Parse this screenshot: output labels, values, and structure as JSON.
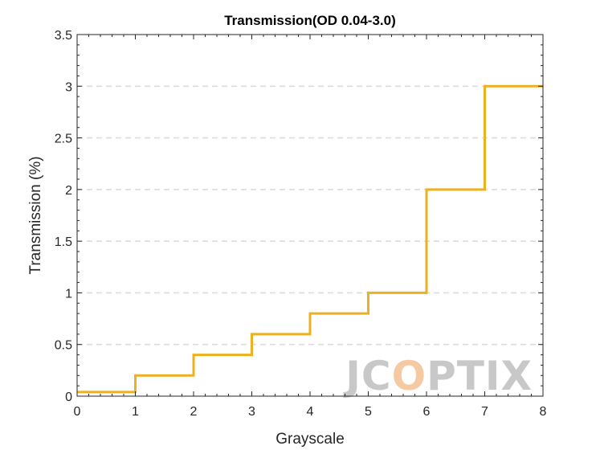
{
  "chart_data": {
    "type": "line",
    "step": "post",
    "title": "Transmission(OD 0.04-3.0)",
    "xlabel": "Grayscale",
    "ylabel": "Transmission (%)",
    "xlim": [
      0,
      8
    ],
    "ylim": [
      0,
      3.5
    ],
    "x_ticks": [
      0,
      1,
      2,
      3,
      4,
      5,
      6,
      7,
      8
    ],
    "y_ticks": [
      0,
      0.5,
      1,
      1.5,
      2,
      2.5,
      3,
      3.5
    ],
    "y_tick_labels": [
      "0",
      "0.5",
      "1",
      "1.5",
      "2",
      "2.5",
      "3",
      "3.5"
    ],
    "grid": "horizontal dashed",
    "series": [
      {
        "color": "#EDB120",
        "x": [
          0,
          1,
          2,
          3,
          4,
          5,
          6,
          7
        ],
        "values": [
          0.04,
          0.2,
          0.4,
          0.6,
          0.8,
          1.0,
          2.0,
          3.0
        ]
      }
    ]
  },
  "watermark": {
    "text": "JCOPTIX",
    "color": "#c8c8c8",
    "accent_color": "#f5c9a2"
  }
}
